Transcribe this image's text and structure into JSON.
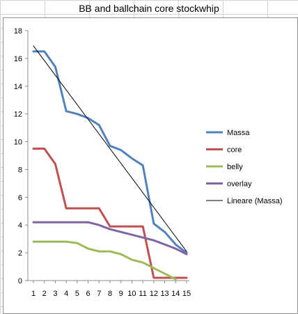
{
  "chart_data": {
    "type": "line",
    "title": "BB and ballchain core stockwhip",
    "xlabel": "",
    "ylabel": "",
    "x": [
      1,
      2,
      3,
      4,
      5,
      6,
      7,
      8,
      9,
      10,
      11,
      12,
      13,
      14,
      15
    ],
    "ylim": [
      0,
      18
    ],
    "yticks": [
      0,
      2,
      4,
      6,
      8,
      10,
      12,
      14,
      16,
      18
    ],
    "grid": false,
    "legend_position": "right",
    "series": [
      {
        "name": "Massa",
        "color": "#4f81bd",
        "width": 3,
        "values": [
          16.5,
          16.5,
          15.4,
          12.2,
          12.0,
          11.7,
          11.2,
          9.7,
          9.4,
          8.8,
          8.3,
          4.1,
          3.5,
          2.6,
          2.0
        ]
      },
      {
        "name": "core",
        "color": "#c0504d",
        "width": 3,
        "values": [
          9.5,
          9.5,
          8.4,
          5.2,
          5.2,
          5.2,
          5.2,
          3.9,
          3.9,
          3.9,
          3.9,
          0.2,
          0.2,
          0.2,
          0.2
        ]
      },
      {
        "name": "belly",
        "color": "#9bbb59",
        "width": 3,
        "values": [
          2.8,
          2.8,
          2.8,
          2.8,
          2.7,
          2.3,
          2.1,
          2.1,
          1.9,
          1.5,
          1.3,
          0.9,
          0.5,
          0.1,
          null
        ]
      },
      {
        "name": "overlay",
        "color": "#8064a2",
        "width": 3,
        "values": [
          4.2,
          4.2,
          4.2,
          4.2,
          4.2,
          4.2,
          4.0,
          3.7,
          3.5,
          3.3,
          3.1,
          2.9,
          2.6,
          2.3,
          1.9
        ]
      },
      {
        "name": "Lineare (Massa)",
        "color": "#000000",
        "width": 1,
        "values": [
          16.9,
          null,
          null,
          null,
          null,
          null,
          null,
          null,
          null,
          null,
          null,
          null,
          null,
          null,
          2.1
        ]
      }
    ]
  }
}
